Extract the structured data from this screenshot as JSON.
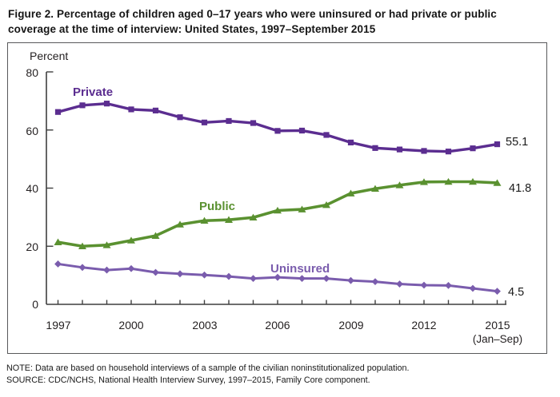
{
  "title": {
    "line1": "Figure 2. Percentage of children aged 0–17 years who were uninsured or had private or public",
    "line2": "coverage at the time of interview: United States, 1997–September 2015"
  },
  "axis": {
    "ylabel": "Percent",
    "y_ticks": [
      "80",
      "60",
      "40",
      "20",
      "0"
    ],
    "x_ticks": [
      "1997",
      "2000",
      "2003",
      "2006",
      "2009",
      "2012",
      "2015"
    ],
    "x_sublabel": "(Jan–Sep)"
  },
  "chart_data": {
    "type": "line",
    "title": "Percentage of children aged 0–17 years who were uninsured or had private or public coverage at the time of interview: United States, 1997–September 2015",
    "xlabel": "",
    "ylabel": "Percent",
    "ylim": [
      0,
      80
    ],
    "grid": false,
    "legend_position": "inline-labels",
    "x": [
      1997,
      1998,
      1999,
      2000,
      2001,
      2002,
      2003,
      2004,
      2005,
      2006,
      2007,
      2008,
      2009,
      2010,
      2011,
      2012,
      2013,
      2014,
      2015
    ],
    "x_note": "2015 value covers January–September only",
    "series": [
      {
        "name": "Private",
        "marker": "square",
        "color": "#5b2d90",
        "end_label": "55.1",
        "values": [
          66.2,
          68.5,
          69.1,
          67.1,
          66.7,
          64.4,
          62.6,
          63.1,
          62.4,
          59.7,
          59.8,
          58.3,
          55.7,
          53.8,
          53.3,
          52.8,
          52.6,
          53.7,
          55.1
        ]
      },
      {
        "name": "Public",
        "marker": "triangle",
        "color": "#5a9130",
        "end_label": "41.8",
        "values": [
          21.4,
          20.0,
          20.4,
          22.0,
          23.6,
          27.5,
          28.8,
          29.1,
          29.9,
          32.3,
          32.7,
          34.2,
          38.2,
          39.8,
          41.0,
          42.1,
          42.2,
          42.2,
          41.8
        ]
      },
      {
        "name": "Uninsured",
        "marker": "diamond",
        "color": "#7a5cad",
        "end_label": "4.5",
        "values": [
          13.9,
          12.7,
          11.8,
          12.3,
          11.0,
          10.5,
          10.1,
          9.6,
          8.9,
          9.3,
          8.9,
          8.9,
          8.2,
          7.8,
          7.0,
          6.6,
          6.5,
          5.5,
          4.5
        ]
      }
    ]
  },
  "notes": {
    "note": "NOTE: Data are based on household interviews of a sample of the civilian noninstitutionalized population.",
    "source": "SOURCE: CDC/NCHS, National Health Interview Survey, 1997–2015, Family Core component."
  },
  "colors": {
    "private": "#5b2d90",
    "public": "#5a9130",
    "uninsured": "#7a5cad",
    "axis": "#3f3f3f",
    "panel_border": "#58595b",
    "text": "#231f20"
  }
}
